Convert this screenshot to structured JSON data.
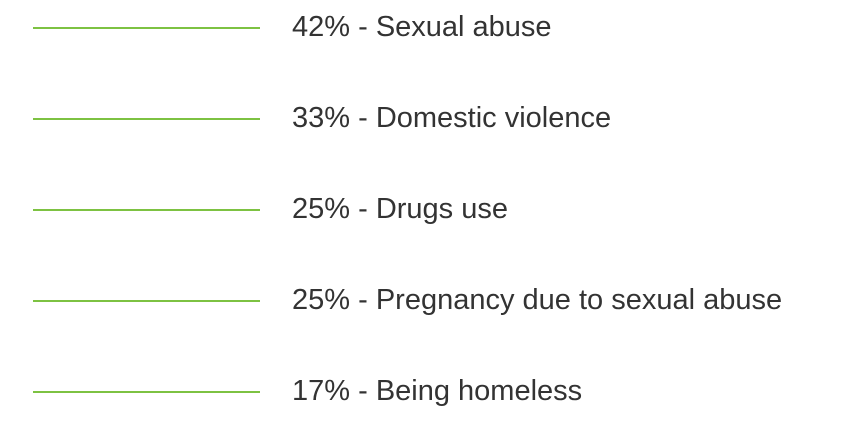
{
  "items": [
    {
      "text": "42% - Sexual abuse"
    },
    {
      "text": "33% - Domestic violence"
    },
    {
      "text": "25% - Drugs use"
    },
    {
      "text": "25% - Pregnancy due to sexual abuse"
    },
    {
      "text": "17% - Being homeless"
    }
  ]
}
